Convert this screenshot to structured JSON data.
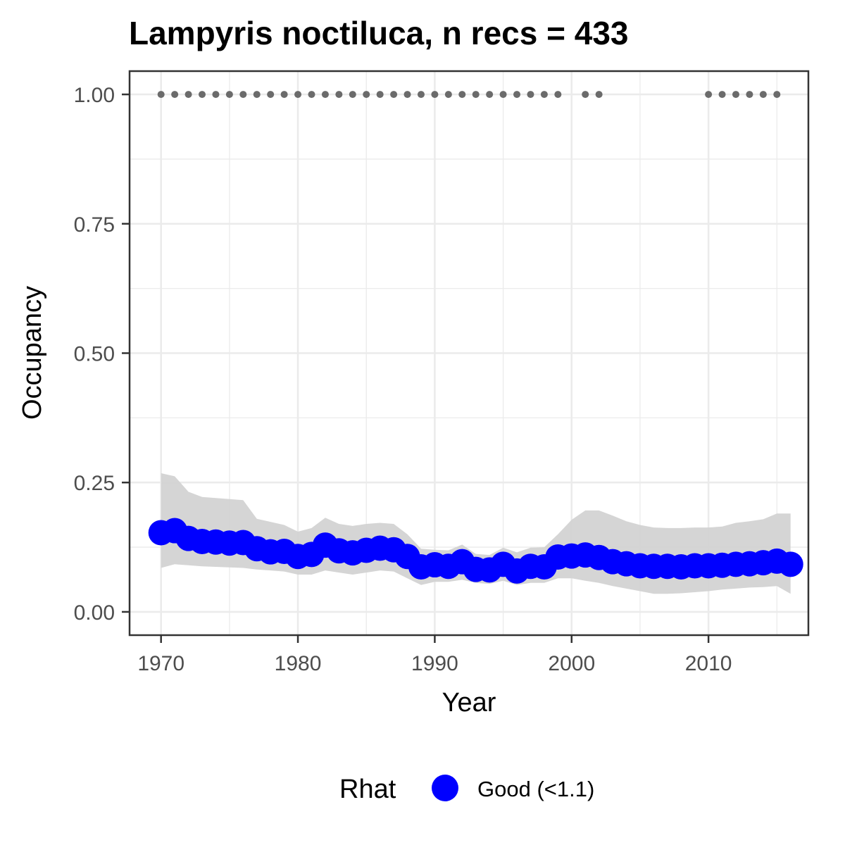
{
  "chart_data": {
    "type": "line",
    "title": "Lampyris noctiluca, n recs = 433",
    "xlabel": "Year",
    "ylabel": "Occupancy",
    "xlim": [
      1967.7,
      2017.3
    ],
    "ylim": [
      -0.045,
      1.045
    ],
    "x_ticks": [
      1970,
      1980,
      1990,
      2000,
      2010
    ],
    "x_tick_labels": [
      "1970",
      "1980",
      "1990",
      "2000",
      "2010"
    ],
    "y_ticks": [
      0,
      0.25,
      0.5,
      0.75,
      1.0
    ],
    "y_tick_labels": [
      "0.00",
      "0.25",
      "0.50",
      "0.75",
      "1.00"
    ],
    "grid": true,
    "legend": {
      "title": "Rhat",
      "placement": "bottom",
      "entries": [
        {
          "label": "Good (<1.1)",
          "color": "#0000ff"
        }
      ]
    },
    "colors": {
      "estimate": "#0000ff",
      "ribbon": "#d3d3d3",
      "records": "#6b6b6b",
      "panel_border": "#333333",
      "grid": "#ebebeb"
    },
    "series": [
      {
        "name": "Good (<1.1)",
        "x": [
          1970,
          1971,
          1972,
          1973,
          1974,
          1975,
          1976,
          1977,
          1978,
          1979,
          1980,
          1981,
          1982,
          1983,
          1984,
          1985,
          1986,
          1987,
          1988,
          1989,
          1990,
          1991,
          1992,
          1993,
          1994,
          1995,
          1996,
          1997,
          1998,
          1999,
          2000,
          2001,
          2002,
          2003,
          2004,
          2005,
          2006,
          2007,
          2008,
          2009,
          2010,
          2011,
          2012,
          2013,
          2014,
          2015,
          2016
        ],
        "y": [
          0.153,
          0.157,
          0.142,
          0.136,
          0.135,
          0.133,
          0.134,
          0.122,
          0.116,
          0.117,
          0.107,
          0.111,
          0.129,
          0.118,
          0.114,
          0.119,
          0.123,
          0.12,
          0.107,
          0.087,
          0.091,
          0.088,
          0.097,
          0.082,
          0.081,
          0.092,
          0.079,
          0.088,
          0.087,
          0.106,
          0.108,
          0.11,
          0.105,
          0.097,
          0.093,
          0.089,
          0.088,
          0.088,
          0.087,
          0.089,
          0.089,
          0.09,
          0.092,
          0.093,
          0.095,
          0.098,
          0.092
        ],
        "lower": [
          0.085,
          0.092,
          0.09,
          0.088,
          0.087,
          0.086,
          0.085,
          0.082,
          0.08,
          0.078,
          0.072,
          0.072,
          0.08,
          0.076,
          0.072,
          0.076,
          0.08,
          0.078,
          0.065,
          0.052,
          0.058,
          0.058,
          0.062,
          0.056,
          0.054,
          0.06,
          0.052,
          0.056,
          0.056,
          0.065,
          0.065,
          0.06,
          0.056,
          0.05,
          0.045,
          0.04,
          0.035,
          0.035,
          0.036,
          0.038,
          0.04,
          0.043,
          0.045,
          0.047,
          0.048,
          0.05,
          0.035
        ],
        "upper": [
          0.268,
          0.262,
          0.232,
          0.222,
          0.22,
          0.218,
          0.216,
          0.18,
          0.174,
          0.168,
          0.155,
          0.162,
          0.182,
          0.17,
          0.166,
          0.17,
          0.172,
          0.17,
          0.15,
          0.122,
          0.12,
          0.119,
          0.13,
          0.112,
          0.11,
          0.124,
          0.115,
          0.124,
          0.125,
          0.15,
          0.178,
          0.196,
          0.196,
          0.186,
          0.175,
          0.168,
          0.163,
          0.162,
          0.162,
          0.163,
          0.163,
          0.165,
          0.172,
          0.175,
          0.179,
          0.19,
          0.19
        ]
      }
    ],
    "records": {
      "x": [
        1970,
        1971,
        1972,
        1973,
        1974,
        1975,
        1976,
        1977,
        1978,
        1979,
        1980,
        1981,
        1982,
        1983,
        1984,
        1985,
        1986,
        1987,
        1988,
        1989,
        1990,
        1991,
        1992,
        1993,
        1994,
        1995,
        1996,
        1997,
        1998,
        1999,
        2001,
        2002,
        2010,
        2011,
        2012,
        2013,
        2014,
        2015
      ],
      "y": 1.0
    }
  }
}
